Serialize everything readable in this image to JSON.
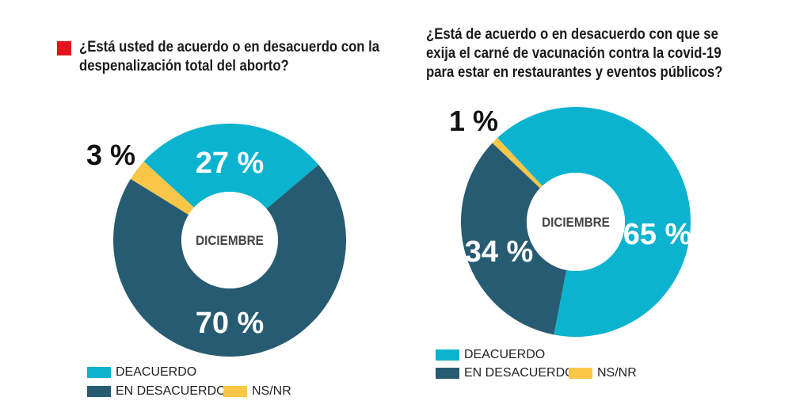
{
  "colors": {
    "deacuerdo": "#0bb3cf",
    "desacuerdo": "#275b72",
    "nsnr": "#f8c748"
  },
  "chart_data": [
    {
      "type": "pie",
      "title": "¿Está usted de acuerdo o en desacuerdo con la despenalización total del aborto?",
      "center_label": "DICIEMBRE",
      "categories": [
        "DEACUERDO",
        "EN DESACUERDO",
        "NS/NR"
      ],
      "values": [
        27,
        70,
        3
      ],
      "labels": [
        "27 %",
        "70 %",
        "3 %"
      ],
      "legend": "bottom"
    },
    {
      "type": "pie",
      "title": "¿Está de acuerdo o en desacuerdo con que se exija el carné de vacunación contra la covid-19 para estar en restaurantes y eventos públicos?",
      "center_label": "DICIEMBRE",
      "categories": [
        "DEACUERDO",
        "EN DESACUERDO",
        "NS/NR"
      ],
      "values": [
        65,
        34,
        1
      ],
      "labels": [
        "65 %",
        "34 %",
        "1 %"
      ],
      "legend": "bottom"
    }
  ]
}
